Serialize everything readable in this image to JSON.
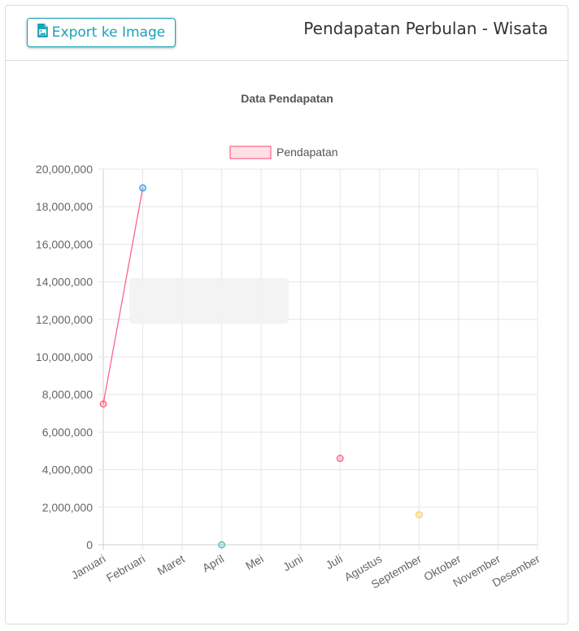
{
  "header": {
    "export_button": {
      "label": "Export ke Image",
      "icon": "file-image-icon"
    },
    "title": "Pendapatan Perbulan - Wisata"
  },
  "colors": {
    "accent": "#17a2b8",
    "line": "#ff6384",
    "grid": "#e6e6e6",
    "legend_fill": "#ffe0e6"
  },
  "chart_data": {
    "type": "line",
    "title": "Data Pendapatan",
    "legend": [
      "Pendapatan"
    ],
    "legend_position": "top",
    "categories": [
      "Januari",
      "Februari",
      "Maret",
      "April",
      "Mei",
      "Juni",
      "Juli",
      "Agustus",
      "September",
      "Oktober",
      "November",
      "Desember"
    ],
    "series": [
      {
        "name": "Pendapatan",
        "values": [
          7500000,
          19000000,
          null,
          0,
          null,
          null,
          4600000,
          null,
          1600000,
          null,
          null,
          null
        ],
        "point_colors": [
          "#ff6384",
          "#36a2eb",
          null,
          "#4bc0c0",
          null,
          null,
          "#ff6384",
          null,
          "#ffce56",
          null,
          null,
          null
        ]
      }
    ],
    "ylim": [
      0,
      20000000
    ],
    "yticks": [
      0,
      2000000,
      4000000,
      6000000,
      8000000,
      10000000,
      12000000,
      14000000,
      16000000,
      18000000,
      20000000
    ],
    "ytick_labels": [
      "0",
      "2,000,000",
      "4,000,000",
      "6,000,000",
      "8,000,000",
      "10,000,000",
      "12,000,000",
      "14,000,000",
      "16,000,000",
      "18,000,000",
      "20,000,000"
    ],
    "grid": true
  }
}
